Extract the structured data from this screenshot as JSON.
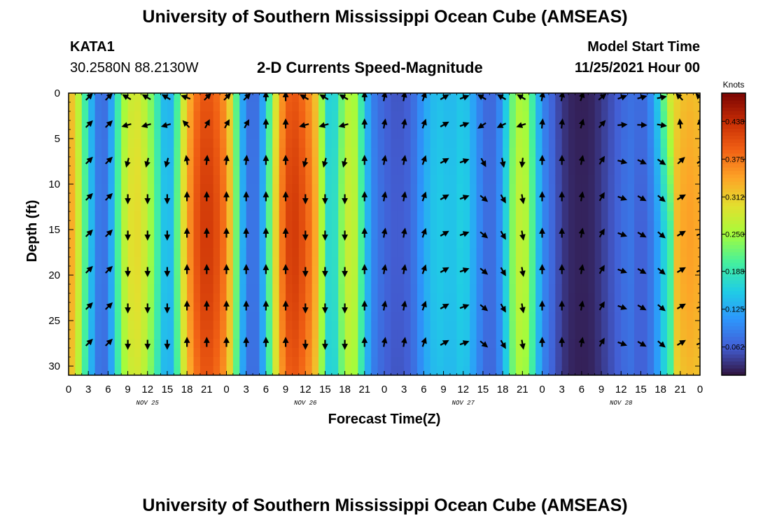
{
  "header": {
    "title": "University of Southern Mississippi Ocean Cube (AMSEAS)",
    "station_id": "KATA1",
    "station_coords": "30.2580N  88.2130W",
    "subtitle": "2-D Currents Speed-Magnitude",
    "model_start_label": "Model Start Time",
    "model_start_value": "11/25/2021 Hour 00"
  },
  "footer": {
    "title": "University of Southern Mississippi Ocean Cube (AMSEAS)"
  },
  "chart_data": {
    "type": "heatmap",
    "title": "2-D Currents Speed-Magnitude",
    "xlabel": "Forecast Time(Z)",
    "ylabel": "Depth (ft)",
    "xlim": [
      0,
      96
    ],
    "ylim": [
      31,
      0
    ],
    "x_ticks": [
      0,
      3,
      6,
      9,
      12,
      15,
      18,
      21,
      24,
      27,
      30,
      33,
      36,
      39,
      42,
      45,
      48,
      51,
      54,
      57,
      60,
      63,
      66,
      69,
      72,
      75,
      78,
      81,
      84,
      87,
      90,
      93,
      96
    ],
    "x_tick_labels": [
      "0",
      "3",
      "6",
      "9",
      "12",
      "15",
      "18",
      "21",
      "0",
      "3",
      "6",
      "9",
      "12",
      "15",
      "18",
      "21",
      "0",
      "3",
      "6",
      "9",
      "12",
      "15",
      "18",
      "21",
      "0",
      "3",
      "6",
      "9",
      "12",
      "15",
      "18",
      "21",
      "0"
    ],
    "y_ticks": [
      0,
      5,
      10,
      15,
      20,
      25,
      30
    ],
    "y_tick_labels": [
      "0",
      "5",
      "10",
      "15",
      "20",
      "25",
      "30"
    ],
    "date_labels": [
      {
        "x": 12,
        "text": "NOV 25"
      },
      {
        "x": 36,
        "text": "NOV 26"
      },
      {
        "x": 60,
        "text": "NOV 27"
      },
      {
        "x": 84,
        "text": "NOV 28"
      }
    ],
    "colorbar": {
      "label": "Knots",
      "min": 0.015,
      "max": 0.485,
      "ticks": [
        0.062,
        0.125,
        0.188,
        0.25,
        0.312,
        0.375,
        0.438
      ],
      "tick_labels": [
        "0.062",
        "0.125",
        "0.188",
        "0.250",
        "0.312",
        "0.375",
        "0.438"
      ]
    },
    "speed_profile_knots": [
      [
        0,
        0.35
      ],
      [
        1,
        0.31
      ],
      [
        2,
        0.24
      ],
      [
        3,
        0.17
      ],
      [
        4,
        0.1
      ],
      [
        5,
        0.07
      ],
      [
        6,
        0.09
      ],
      [
        7,
        0.16
      ],
      [
        8,
        0.24
      ],
      [
        9,
        0.28
      ],
      [
        10,
        0.3
      ],
      [
        11,
        0.29
      ],
      [
        12,
        0.26
      ],
      [
        13,
        0.22
      ],
      [
        14,
        0.17
      ],
      [
        15,
        0.12
      ],
      [
        16,
        0.16
      ],
      [
        17,
        0.26
      ],
      [
        18,
        0.33
      ],
      [
        19,
        0.38
      ],
      [
        20,
        0.41
      ],
      [
        21,
        0.42
      ],
      [
        22,
        0.41
      ],
      [
        23,
        0.39
      ],
      [
        24,
        0.36
      ],
      [
        25,
        0.28
      ],
      [
        26,
        0.16
      ],
      [
        27,
        0.09
      ],
      [
        28,
        0.07
      ],
      [
        29,
        0.09
      ],
      [
        30,
        0.16
      ],
      [
        31,
        0.26
      ],
      [
        32,
        0.34
      ],
      [
        33,
        0.4
      ],
      [
        34,
        0.42
      ],
      [
        35,
        0.41
      ],
      [
        36,
        0.39
      ],
      [
        37,
        0.36
      ],
      [
        38,
        0.31
      ],
      [
        39,
        0.19
      ],
      [
        40,
        0.15
      ],
      [
        41,
        0.2
      ],
      [
        42,
        0.26
      ],
      [
        43,
        0.28
      ],
      [
        44,
        0.24
      ],
      [
        45,
        0.16
      ],
      [
        46,
        0.1
      ],
      [
        47,
        0.08
      ],
      [
        48,
        0.07
      ],
      [
        49,
        0.06
      ],
      [
        50,
        0.06
      ],
      [
        51,
        0.06
      ],
      [
        52,
        0.07
      ],
      [
        53,
        0.09
      ],
      [
        54,
        0.12
      ],
      [
        55,
        0.14
      ],
      [
        56,
        0.15
      ],
      [
        57,
        0.15
      ],
      [
        58,
        0.14
      ],
      [
        59,
        0.15
      ],
      [
        60,
        0.16
      ],
      [
        61,
        0.14
      ],
      [
        62,
        0.11
      ],
      [
        63,
        0.08
      ],
      [
        64,
        0.07
      ],
      [
        65,
        0.08
      ],
      [
        66,
        0.12
      ],
      [
        67,
        0.2
      ],
      [
        68,
        0.26
      ],
      [
        69,
        0.27
      ],
      [
        70,
        0.24
      ],
      [
        71,
        0.17
      ],
      [
        72,
        0.1
      ],
      [
        73,
        0.08
      ],
      [
        74,
        0.06
      ],
      [
        75,
        0.04
      ],
      [
        76,
        0.03
      ],
      [
        77,
        0.025
      ],
      [
        78,
        0.025
      ],
      [
        79,
        0.025
      ],
      [
        80,
        0.03
      ],
      [
        81,
        0.04
      ],
      [
        82,
        0.05
      ],
      [
        83,
        0.06
      ],
      [
        84,
        0.07
      ],
      [
        85,
        0.08
      ],
      [
        86,
        0.08
      ],
      [
        87,
        0.07
      ],
      [
        88,
        0.08
      ],
      [
        89,
        0.12
      ],
      [
        90,
        0.18
      ],
      [
        91,
        0.26
      ],
      [
        92,
        0.31
      ],
      [
        93,
        0.33
      ],
      [
        94,
        0.34
      ],
      [
        95,
        0.34
      ],
      [
        96,
        0.33
      ]
    ],
    "arrow_times": [
      3,
      6,
      9,
      12,
      15,
      18,
      21,
      24,
      27,
      30,
      33,
      36,
      39,
      42,
      45,
      48,
      51,
      54,
      57,
      60,
      63,
      66,
      69,
      72,
      75,
      78,
      81,
      84,
      87,
      90,
      93,
      96
    ],
    "arrow_depths": [
      0.5,
      3.5,
      7.5,
      11.5,
      15.5,
      19.5,
      23.5,
      27.5
    ],
    "arrow_surface_deg": [
      -45,
      -45,
      210,
      210,
      210,
      200,
      -45,
      -45,
      -45,
      -90,
      -90,
      210,
      210,
      210,
      -90,
      -80,
      -80,
      -70,
      -30,
      -20,
      210,
      210,
      210,
      -80,
      -80,
      -70,
      -40,
      -20,
      -15,
      -10,
      225,
      225
    ],
    "arrow_deep_deg": [
      -45,
      -45,
      90,
      90,
      90,
      -90,
      -90,
      -90,
      -90,
      -90,
      -90,
      90,
      90,
      90,
      -90,
      -80,
      -80,
      -70,
      -30,
      -20,
      40,
      60,
      80,
      -90,
      -90,
      -80,
      -60,
      20,
      30,
      40,
      -30,
      -20
    ]
  }
}
